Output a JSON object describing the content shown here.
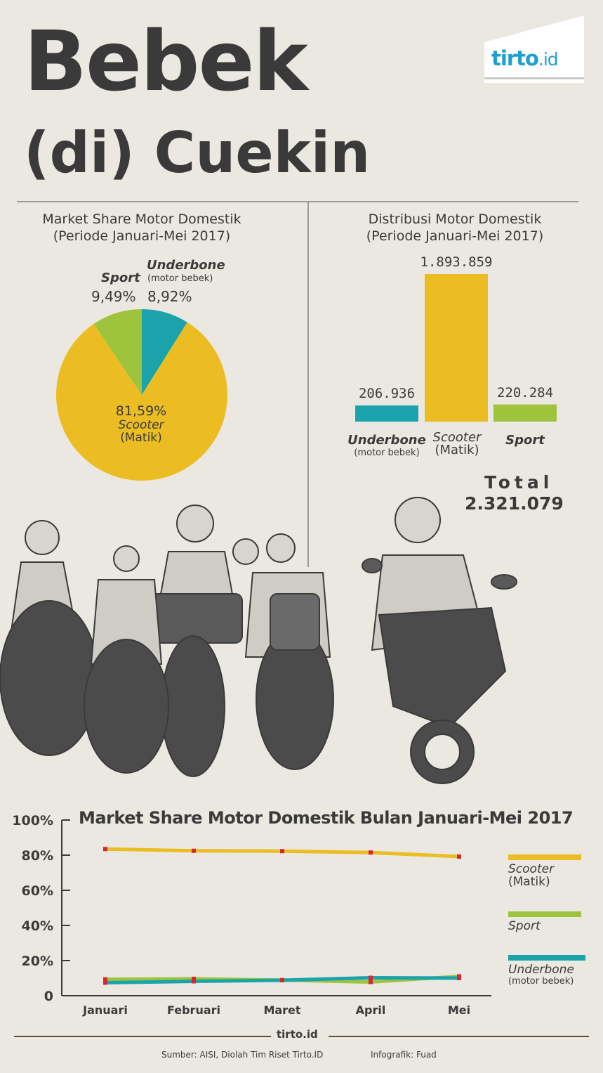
{
  "title_line1": "Bebek",
  "title_line2": "(di) Cuekin",
  "logo": {
    "main": "tirto",
    "suffix": ".id"
  },
  "colors": {
    "scooter": "#ebbd22",
    "sport": "#9dc43c",
    "underbone": "#1ba3ac",
    "marker": "#d8262e",
    "ink": "#3a3a3a"
  },
  "chart_data": [
    {
      "type": "pie",
      "title_line1": "Market Share Motor Domestik",
      "title_line2": "(Periode Januari-Mei 2017)",
      "slices": [
        {
          "name": "Underbone",
          "sub": "(motor bebek)",
          "value": 8.92,
          "label": "8,92%"
        },
        {
          "name": "Scooter",
          "sub": "(Matik)",
          "value": 81.59,
          "label": "81,59%"
        },
        {
          "name": "Sport",
          "sub": "",
          "value": 9.49,
          "label": "9,49%"
        }
      ]
    },
    {
      "type": "bar",
      "title_line1": "Distribusi Motor Domestik",
      "title_line2": "(Periode Januari-Mei 2017)",
      "categories": [
        {
          "name": "Underbone",
          "sub": "(motor bebek)"
        },
        {
          "name": "Scooter",
          "sub": "(Matik)"
        },
        {
          "name": "Sport",
          "sub": ""
        }
      ],
      "values": [
        206936,
        1893859,
        220284
      ],
      "value_labels": [
        "206.936",
        "1.893.859",
        "220.284"
      ],
      "total_label": "Total",
      "total_value": "2.321.079"
    },
    {
      "type": "line",
      "title": "Market Share Motor Domestik Bulan Januari-Mei 2017",
      "x": [
        "Januari",
        "Februari",
        "Maret",
        "April",
        "Mei"
      ],
      "ylim": [
        0,
        100
      ],
      "yticks": [
        0,
        20,
        40,
        60,
        80,
        100
      ],
      "ytick_labels": [
        "0",
        "20%",
        "40%",
        "60%",
        "80%",
        "100%"
      ],
      "series": [
        {
          "name": "Scooter",
          "sub": "(Matik)",
          "key": "scooter",
          "values": [
            83.5,
            82.5,
            82.3,
            81.5,
            79.2
          ]
        },
        {
          "name": "Sport",
          "sub": "",
          "key": "sport",
          "values": [
            9.3,
            9.6,
            8.9,
            7.8,
            11.0
          ]
        },
        {
          "name": "Underbone",
          "sub": "(motor bebek)",
          "key": "underbone",
          "values": [
            7.4,
            8.2,
            8.8,
            10.2,
            10.0
          ]
        }
      ],
      "legend": "right"
    }
  ],
  "footer": {
    "logo": "tirto.id",
    "source": "Sumber: AISI, Diolah Tim Riset Tirto.ID",
    "credit": "Infografik: Fuad"
  }
}
